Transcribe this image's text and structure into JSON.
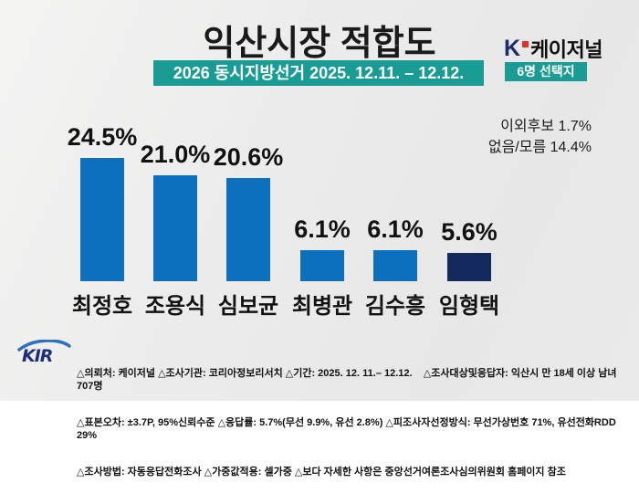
{
  "header": {
    "title": "익산시장 적합도",
    "banner": "2026 동시지방선거 2025. 12.11. – 12.12.",
    "brand": {
      "k": "K",
      "name": "케이저널"
    },
    "badge": "6명 선택지"
  },
  "annotation": {
    "line1": "이외후보 1.7%",
    "line2": "없음/모름 14.4%"
  },
  "chart_data": {
    "type": "bar",
    "title": "익산시장 적합도",
    "subtitle": "2026 동시지방선거 2025. 12.11. – 12.12.",
    "categories": [
      "최정호",
      "조용식",
      "심보균",
      "최병관",
      "김수흥",
      "임형택"
    ],
    "values": [
      24.5,
      21.0,
      20.6,
      6.1,
      6.1,
      5.6
    ],
    "value_suffix": "%",
    "bar_colors": [
      "#0c70bf",
      "#0c70bf",
      "#0c70bf",
      "#0c70bf",
      "#0c70bf",
      "#142a5f"
    ],
    "ylim": [
      0,
      27
    ],
    "grid": false,
    "legend": "none",
    "annotations": [
      "이외후보 1.7%",
      "없음/모름 14.4%"
    ]
  },
  "footer": {
    "logo": "KIR",
    "lines": [
      "△의뢰처: 케이저널 △조사기관: 코리아정보리서치 △기간: 2025. 12. 11.– 12.12.    △조사대상및응답자: 익산시 만 18세 이상 남녀 707명",
      "△표본오차: ±3.7P, 95%신뢰수준 △응답률: 5.7%(무선 9.9%, 유선 2.8%) △피조사자선정방식: 무선가상번호 71%, 유선전화RDD 29%",
      "△조사방법: 자동응답전화조사 △가중값적용: 셀가중 △보다 자세한 사항은 중앙선거여론조사심의위원회 홈페이지 참조"
    ]
  },
  "colors": {
    "teal": "#1a9b93",
    "bar_blue": "#0c70bf",
    "bar_navy": "#142a5f",
    "brand_k_navy": "#1e2b6f",
    "brand_dot_red": "#e0312a",
    "background": "#ececec"
  }
}
